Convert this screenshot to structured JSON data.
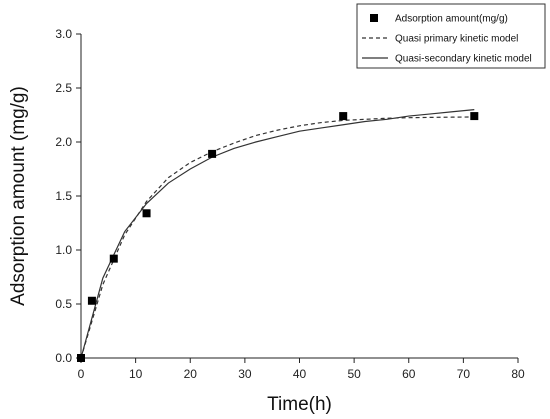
{
  "chart_data": {
    "type": "scatter",
    "title": "",
    "xlabel": "Time(h)",
    "ylabel": "Adsorption amount (mg/g)",
    "xlim": [
      0,
      80
    ],
    "ylim": [
      0,
      3.0
    ],
    "x_ticks": [
      0,
      10,
      20,
      30,
      40,
      50,
      60,
      70,
      80
    ],
    "y_ticks": [
      0.0,
      0.5,
      1.0,
      1.5,
      2.0,
      2.5,
      3.0
    ],
    "y_tick_labels": [
      "0.0",
      "0.5",
      "1.0",
      "1.5",
      "2.0",
      "2.5",
      "3.0"
    ],
    "grid": false,
    "legend_position": "top-right",
    "series": [
      {
        "name": "Adsorption amount(mg/g)",
        "kind": "scatter",
        "marker": "square",
        "color": "#000000",
        "x": [
          0,
          2,
          6,
          12,
          24,
          48,
          72
        ],
        "y": [
          0.0,
          0.53,
          0.92,
          1.34,
          1.89,
          2.24,
          2.24
        ]
      },
      {
        "name": "Quasi primary kinetic model",
        "kind": "line",
        "dash": "dashed",
        "color": "#333333",
        "x": [
          0,
          4,
          8,
          12,
          16,
          20,
          24,
          28,
          32,
          36,
          40,
          44,
          48,
          52,
          56,
          60,
          64,
          68,
          72
        ],
        "y": [
          0.0,
          0.68,
          1.14,
          1.45,
          1.67,
          1.81,
          1.91,
          1.99,
          2.06,
          2.11,
          2.15,
          2.18,
          2.2,
          2.21,
          2.22,
          2.225,
          2.228,
          2.23,
          2.232
        ]
      },
      {
        "name": "Quasi-secondary kinetic model",
        "kind": "line",
        "dash": "solid",
        "color": "#333333",
        "x": [
          0,
          4,
          8,
          12,
          16,
          20,
          24,
          28,
          32,
          36,
          40,
          44,
          48,
          52,
          56,
          60,
          64,
          68,
          72
        ],
        "y": [
          0.0,
          0.74,
          1.17,
          1.43,
          1.62,
          1.75,
          1.86,
          1.94,
          2.0,
          2.05,
          2.1,
          2.13,
          2.16,
          2.19,
          2.21,
          2.24,
          2.26,
          2.28,
          2.3
        ]
      }
    ]
  }
}
